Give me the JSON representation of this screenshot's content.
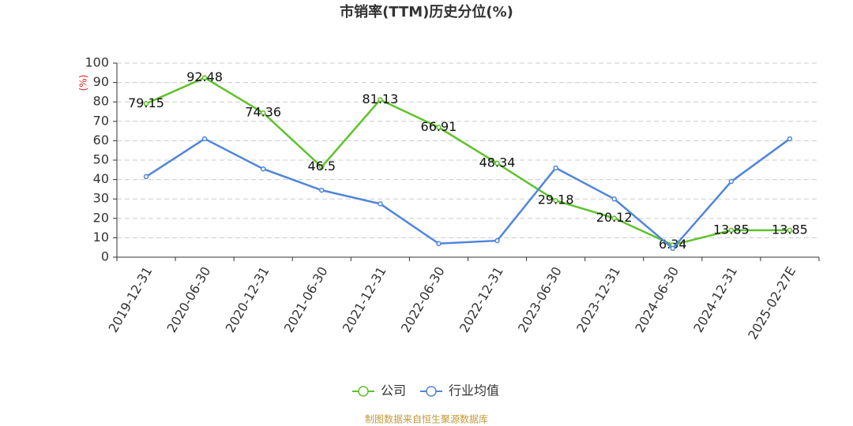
{
  "chart_data": {
    "type": "line",
    "title": "市销率(TTM)历史分位(%)",
    "y_label": "(%)",
    "source": "制图数据来自恒生聚源数据库",
    "categories": [
      "2019-12-31",
      "2020-06-30",
      "2020-12-31",
      "2021-06-30",
      "2021-12-31",
      "2022-06-30",
      "2022-12-31",
      "2023-06-30",
      "2023-12-31",
      "2024-06-30",
      "2024-12-31",
      "2025-02-27E"
    ],
    "series": [
      {
        "name": "公司",
        "color": "#5ec22a",
        "values": [
          79.15,
          92.48,
          74.36,
          46.5,
          81.13,
          66.91,
          48.34,
          29.18,
          20.12,
          6.34,
          13.85,
          13.85
        ],
        "show_labels": true
      },
      {
        "name": "行业均值",
        "color": "#4f86d9",
        "values": [
          41.5,
          61,
          45.5,
          34.5,
          27.5,
          7,
          8.5,
          46,
          30,
          4.5,
          39,
          61
        ],
        "show_labels": false
      }
    ],
    "ylim": [
      0,
      100
    ],
    "yticks": [
      0,
      10,
      20,
      30,
      40,
      50,
      60,
      70,
      80,
      90,
      100
    ],
    "grid": true
  }
}
